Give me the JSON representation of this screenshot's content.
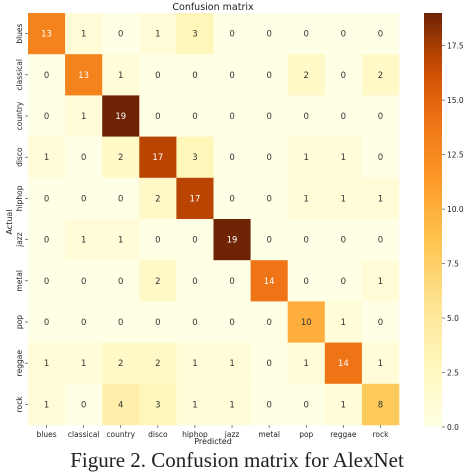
{
  "chart_data": {
    "type": "heatmap",
    "title": "Confusion matrix",
    "xlabel": "Predicted",
    "ylabel": "Actual",
    "x_categories": [
      "blues",
      "classical",
      "country",
      "disco",
      "hiphop",
      "jazz",
      "metal",
      "pop",
      "reggae",
      "rock"
    ],
    "y_categories": [
      "blues",
      "classical",
      "country",
      "disco",
      "hiphop",
      "jazz",
      "metal",
      "pop",
      "reggae",
      "rock"
    ],
    "values": [
      [
        13,
        1,
        0,
        1,
        3,
        0,
        0,
        0,
        0,
        0
      ],
      [
        0,
        13,
        1,
        0,
        0,
        0,
        0,
        2,
        0,
        2
      ],
      [
        0,
        1,
        19,
        0,
        0,
        0,
        0,
        0,
        0,
        0
      ],
      [
        1,
        0,
        2,
        17,
        3,
        0,
        0,
        1,
        1,
        0
      ],
      [
        0,
        0,
        0,
        2,
        17,
        0,
        0,
        1,
        1,
        1
      ],
      [
        0,
        1,
        1,
        0,
        0,
        19,
        0,
        0,
        0,
        0
      ],
      [
        0,
        0,
        0,
        2,
        0,
        0,
        14,
        0,
        0,
        1
      ],
      [
        0,
        0,
        0,
        0,
        0,
        0,
        0,
        10,
        1,
        0
      ],
      [
        1,
        1,
        2,
        2,
        1,
        1,
        0,
        1,
        14,
        1
      ],
      [
        1,
        0,
        4,
        3,
        1,
        1,
        0,
        0,
        1,
        8
      ]
    ],
    "colorbar": {
      "min": 0,
      "max": 19,
      "ticks": [
        "0.0",
        "2.5",
        "5.0",
        "7.5",
        "10.0",
        "12.5",
        "15.0",
        "17.5"
      ],
      "colormap": "YlOrBr"
    }
  },
  "caption": "Figure 2. Confusion matrix for AlexNet"
}
